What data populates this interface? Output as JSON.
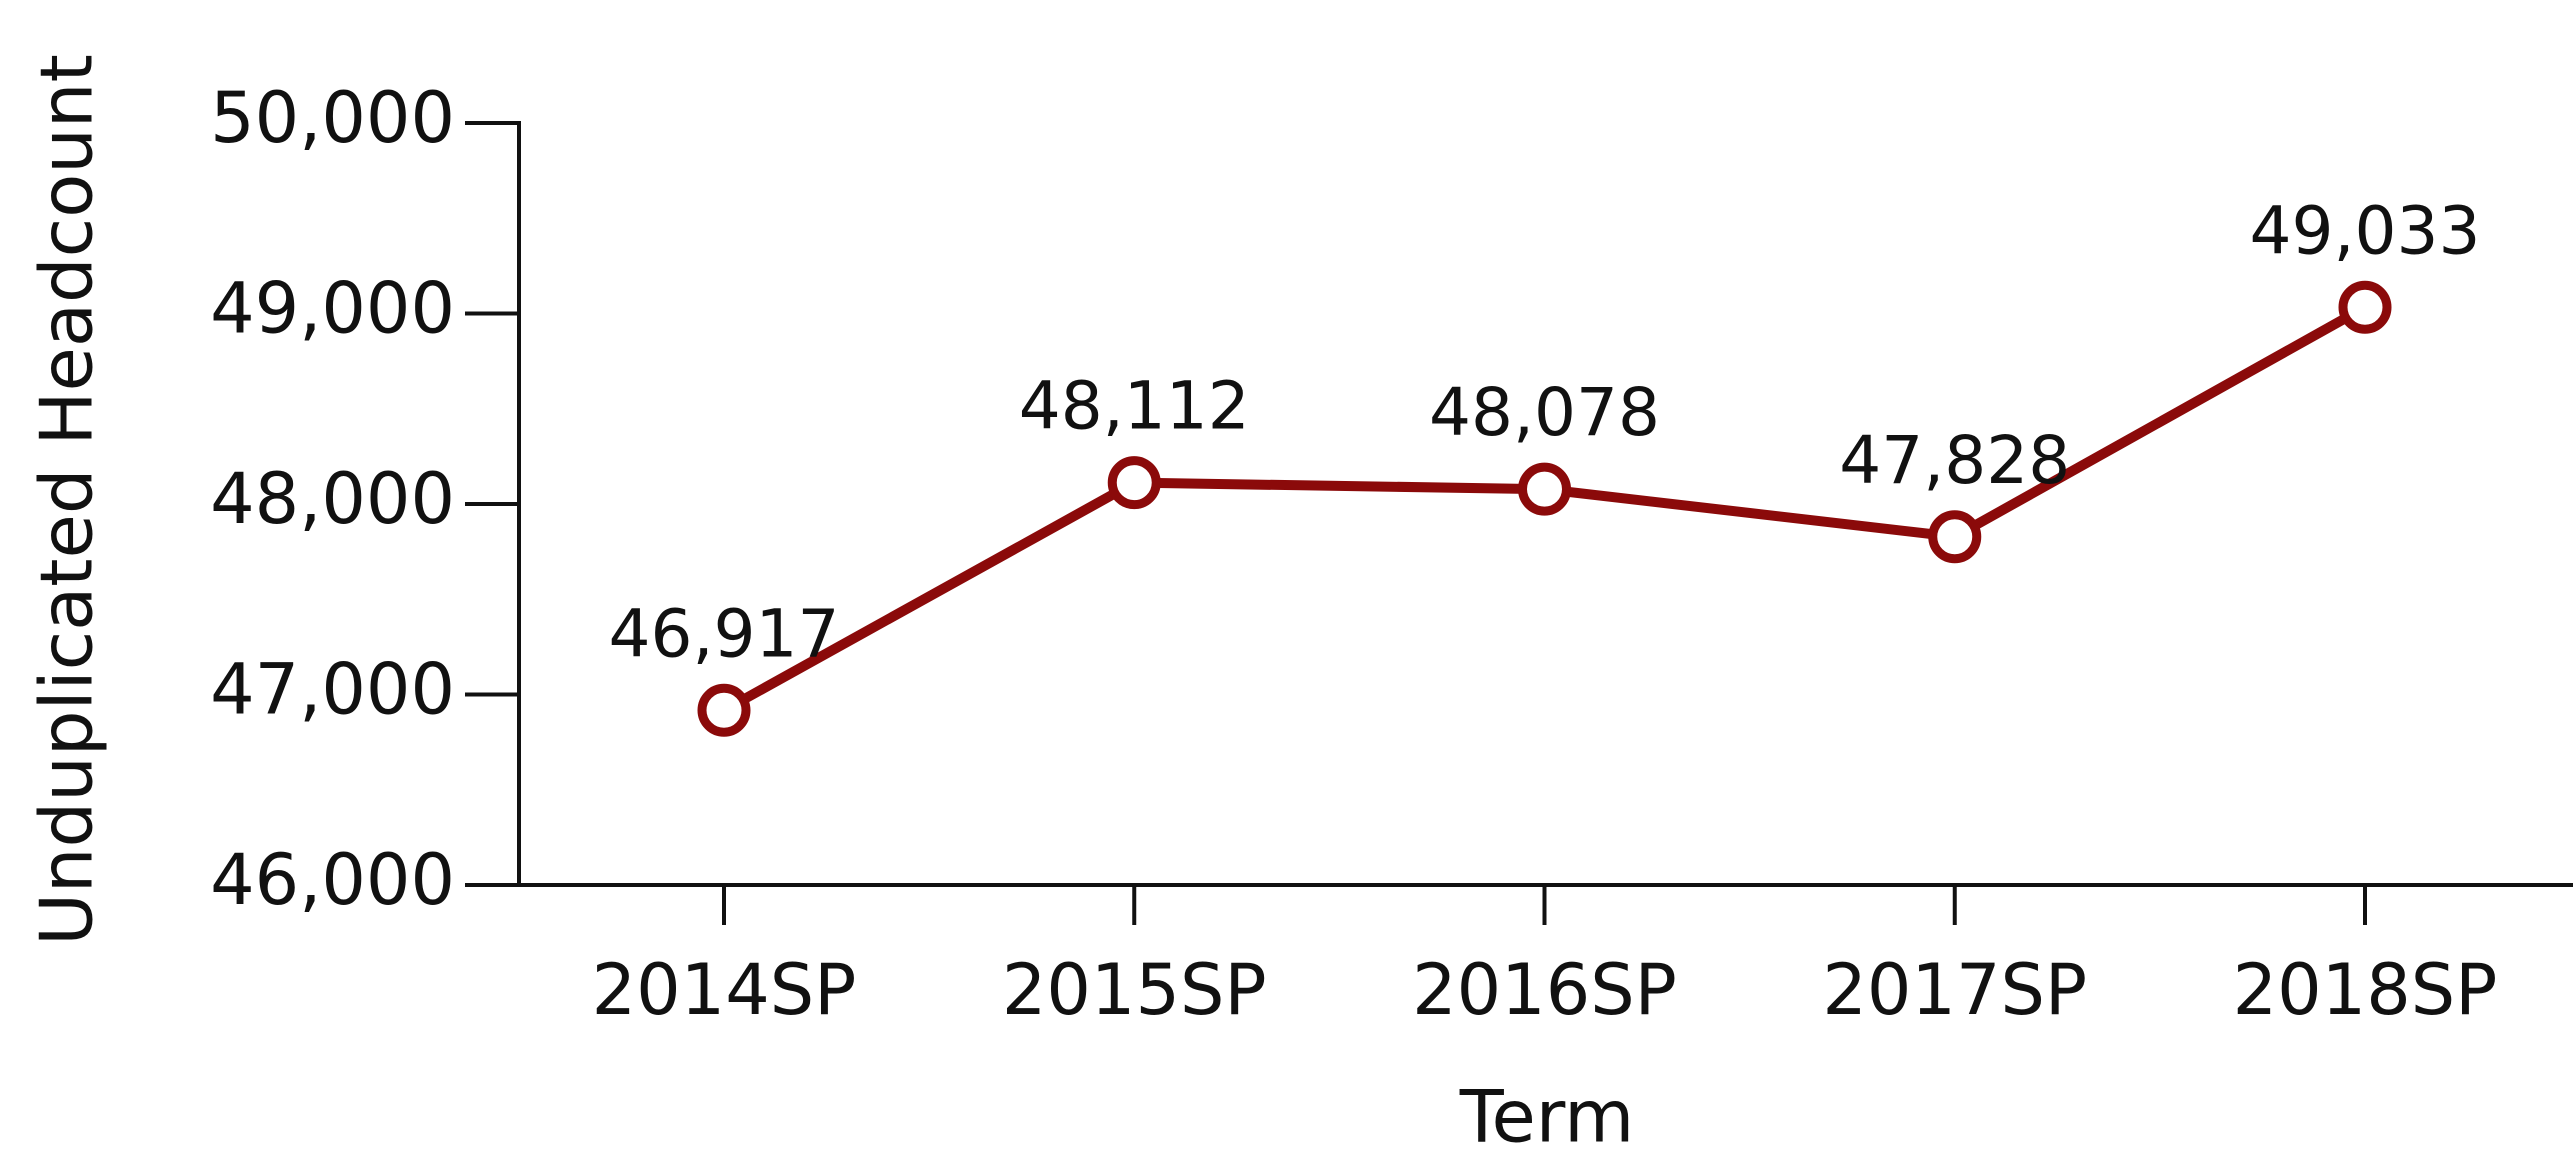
{
  "chart_data": {
    "type": "line",
    "x_label": "Term",
    "y_label": "Unduplicated Headcount",
    "categories": [
      "2014SP",
      "2015SP",
      "2016SP",
      "2017SP",
      "2018SP"
    ],
    "series": [
      {
        "name": "Unduplicated Headcount",
        "color": "#8b0a0a",
        "values": [
          46917,
          48112,
          48078,
          47828,
          49033
        ],
        "value_labels": [
          "46,917",
          "48,112",
          "48,078",
          "47,828",
          "49,033"
        ]
      }
    ],
    "ylim": [
      46000,
      50000
    ],
    "yticks": [
      {
        "value": 46000,
        "label": "46,000"
      },
      {
        "value": 47000,
        "label": "47,000"
      },
      {
        "value": 48000,
        "label": "48,000"
      },
      {
        "value": 49000,
        "label": "49,000"
      },
      {
        "value": 50000,
        "label": "50,000"
      }
    ]
  }
}
